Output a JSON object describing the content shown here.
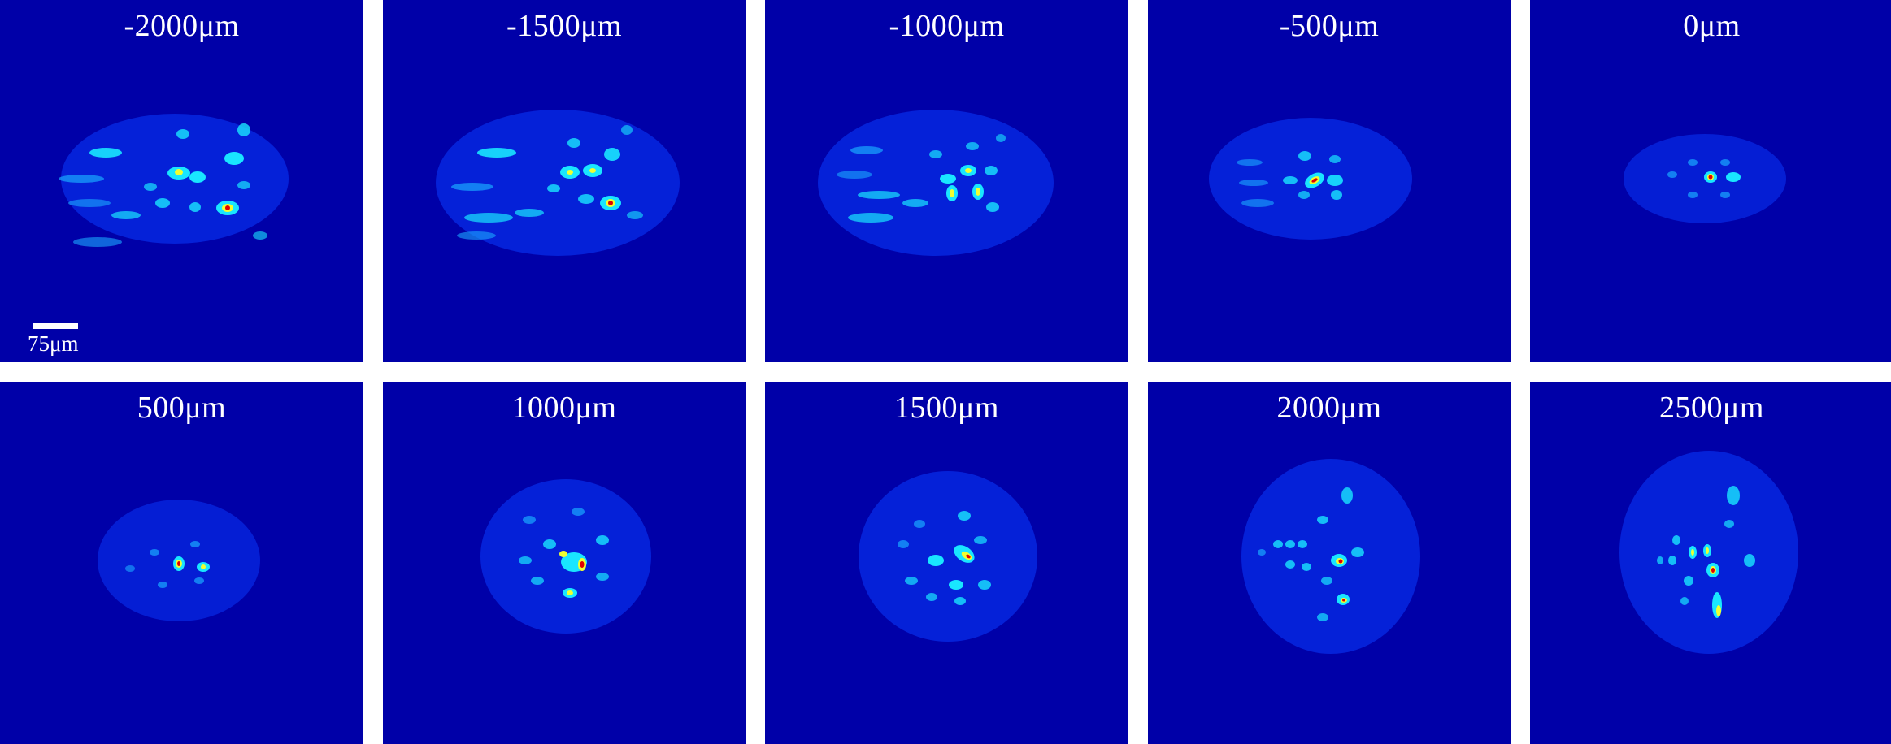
{
  "panels": [
    {
      "label": "-2000μm"
    },
    {
      "label": "-1500μm"
    },
    {
      "label": "-1000μm"
    },
    {
      "label": "-500μm"
    },
    {
      "label": "0μm"
    },
    {
      "label": "500μm"
    },
    {
      "label": "1000μm"
    },
    {
      "label": "1500μm"
    },
    {
      "label": "2000μm"
    },
    {
      "label": "2500μm"
    }
  ],
  "scale_bar": {
    "label": "75μm"
  },
  "colors": {
    "background": "#0000a8",
    "halo": "#0a3cff",
    "cyan": "#19e6ff",
    "yellow": "#f0ff30",
    "red": "#e00000"
  }
}
